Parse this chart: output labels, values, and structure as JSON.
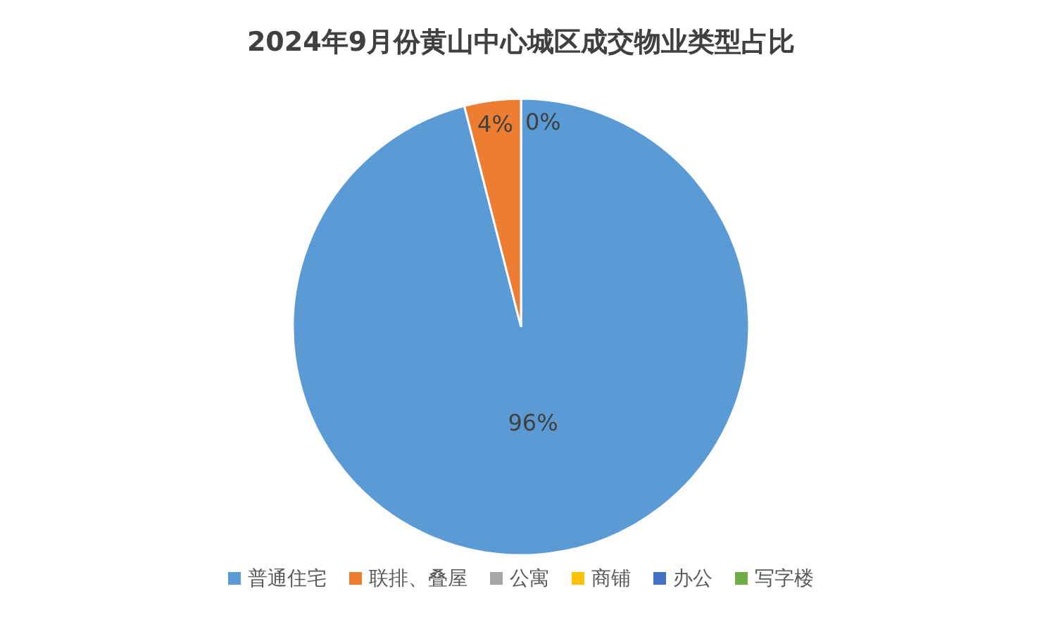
{
  "chart_data": {
    "type": "pie",
    "title": "2024年9月份黄山中心城区成交物业类型占比",
    "categories": [
      "普通住宅",
      "联排、叠屋",
      "公寓",
      "商铺",
      "办公",
      "写字楼"
    ],
    "values": [
      96,
      4,
      0,
      0,
      0,
      0
    ],
    "colors": [
      "#5b9bd5",
      "#ed7d31",
      "#a5a5a5",
      "#ffc000",
      "#4472c4",
      "#70ad47"
    ],
    "value_labels": [
      "96%",
      "4%",
      "0%",
      null,
      null,
      null
    ],
    "legend": "bottom"
  }
}
